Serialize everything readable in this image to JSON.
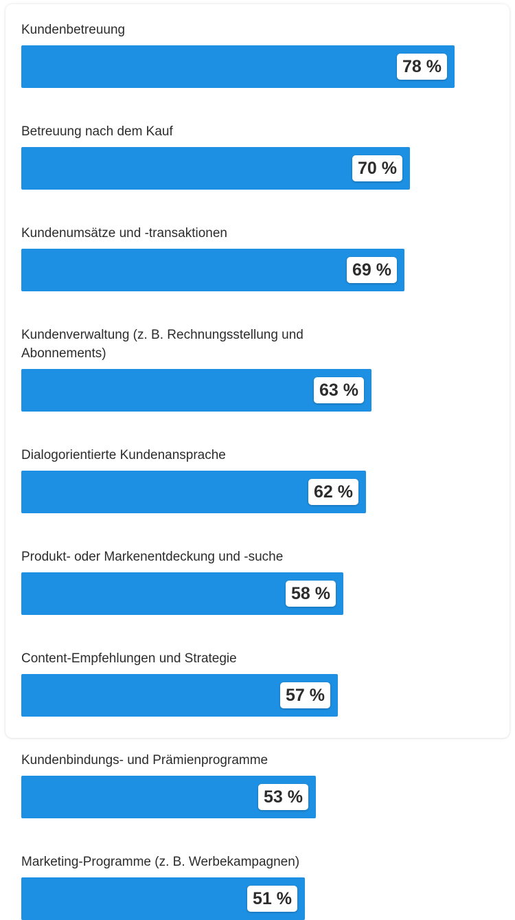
{
  "colors": {
    "bar": "#1e90e3",
    "label": "#2c2c2c",
    "badge_bg": "#ffffff"
  },
  "chart_data": {
    "type": "bar",
    "orientation": "horizontal",
    "unit": "%",
    "xlim": [
      0,
      100
    ],
    "grid": false,
    "categories": [
      "Kundenbetreuung",
      "Betreuung nach dem Kauf",
      "Kundenumsätze und -transaktionen",
      "Kundenverwaltung (z. B. Rechnungsstellung und Abonnements)",
      "Dialogorientierte Kundenansprache",
      "Produkt- oder Markenentdeckung und -suche",
      "Content-Empfehlungen und Strategie",
      "Kundenbindungs- und Prämienprogramme",
      "Marketing-Programme (z. B. Werbekampagnen)"
    ],
    "values": [
      78,
      70,
      69,
      63,
      62,
      58,
      57,
      53,
      51
    ],
    "value_labels": [
      "78 %",
      "70 %",
      "69 %",
      "63 %",
      "62 %",
      "58 %",
      "57 %",
      "53 %",
      "51 %"
    ]
  }
}
